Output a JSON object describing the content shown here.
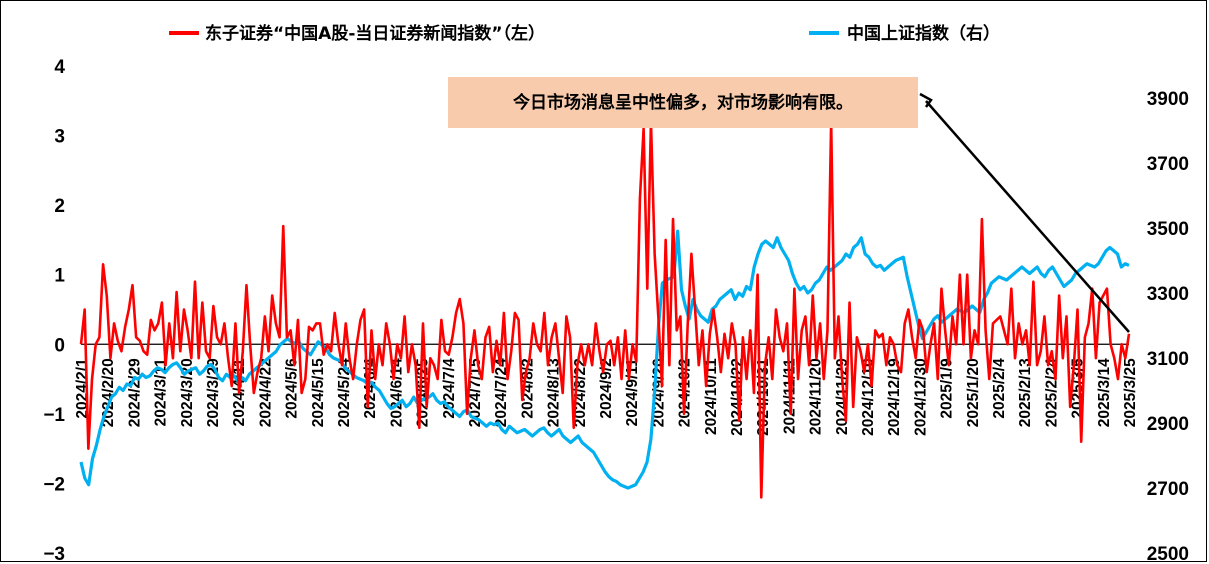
{
  "chart_data": {
    "type": "line",
    "legend": {
      "left_series_label": "东子证券“中国A股-当日证券新闻指数”（左）",
      "right_series_label": "中国上证指数（右）",
      "placement": "top"
    },
    "annotation": "今日市场消息呈中性偏多，对市场影响有限。",
    "colors": {
      "left_series": "#ff0000",
      "right_series": "#00b0f0",
      "annotation_bg": "#f8cbad"
    },
    "y_left": {
      "ylim": [
        -3,
        4
      ],
      "ticks": [
        "4",
        "3",
        "2",
        "1",
        "0",
        "−1",
        "−2",
        "−3"
      ]
    },
    "y_right": {
      "ylim": [
        2500,
        4000
      ],
      "ticks": [
        "3900",
        "3700",
        "3500",
        "3300",
        "3100",
        "2900",
        "2700",
        "2500"
      ]
    },
    "x_tick_labels": [
      "2024/2/1",
      "2024/2/20",
      "2024/2/29",
      "2024/3/11",
      "2024/3/20",
      "2024/3/29",
      "2024/4/11",
      "2024/4/22",
      "2024/5/6",
      "2024/5/15",
      "2024/5/24",
      "2024/6/4",
      "2024/6/14",
      "2024/6/25",
      "2024/7/4",
      "2024/7/15",
      "2024/7/24",
      "2024/8/2",
      "2024/8/13",
      "2024/8/22",
      "2024/9/2",
      "2024/9/11",
      "2024/9/20",
      "2024/10/2",
      "2024/10/11",
      "2024/10/22",
      "2024/10/31",
      "2024/11/11",
      "2024/11/20",
      "2024/11/29",
      "2024/12/10",
      "2024/12/19",
      "2024/12/30",
      "2025/1/9",
      "2025/1/20",
      "2025/2/4",
      "2025/2/13",
      "2025/2/24",
      "2025/3/5",
      "2025/3/14",
      "2025/3/25"
    ],
    "series": [
      {
        "name": "东子证券“中国A股-当日证券新闻指数”（左）",
        "axis": "left",
        "values": [
          0.0,
          0.5,
          -1.5,
          -0.5,
          0.0,
          0.1,
          1.15,
          0.7,
          -0.2,
          0.3,
          0.05,
          -0.1,
          0.25,
          0.5,
          0.85,
          0.1,
          0.05,
          -0.1,
          -0.15,
          0.35,
          0.2,
          0.3,
          0.6,
          -0.3,
          0.3,
          -0.2,
          0.75,
          -0.1,
          0.5,
          0.2,
          -0.2,
          0.9,
          -0.2,
          0.6,
          -0.1,
          -0.2,
          0.55,
          0.1,
          0.0,
          0.3,
          -0.2,
          -0.6,
          0.3,
          -0.7,
          -0.1,
          0.85,
          0.0,
          -0.7,
          -0.4,
          -0.2,
          0.4,
          -0.1,
          0.7,
          0.3,
          0.1,
          1.7,
          0.1,
          0.2,
          -0.3,
          0.35,
          -0.7,
          -0.5,
          0.25,
          0.2,
          0.3,
          0.3,
          -0.15,
          0.0,
          -0.1,
          0.45,
          0.0,
          -0.3,
          0.3,
          -0.2,
          -0.5,
          0.0,
          0.35,
          0.5,
          -0.9,
          0.2,
          -0.5,
          0.0,
          -0.3,
          0.3,
          0.0,
          -0.5,
          0.0,
          -0.2,
          0.4,
          -0.4,
          0.0,
          -0.3,
          -1.2,
          0.3,
          -0.9,
          -0.2,
          -0.3,
          -0.5,
          0.35,
          -0.1,
          -0.15,
          0.1,
          0.45,
          0.65,
          0.3,
          -1.0,
          -0.2,
          0.2,
          -0.3,
          -0.5,
          0.1,
          0.25,
          -0.4,
          0.05,
          -0.3,
          0.45,
          -0.5,
          -0.1,
          0.45,
          0.35,
          -0.8,
          -0.4,
          -0.2,
          0.3,
          0.0,
          -0.1,
          0.45,
          -0.3,
          0.1,
          0.3,
          -0.2,
          -0.7,
          0.4,
          0.1,
          -1.2,
          -0.3,
          0.0,
          -0.3,
          0.0,
          -0.3,
          0.3,
          -0.1,
          -0.4,
          0.0,
          0.05,
          -0.3,
          0.1,
          -0.5,
          0.2,
          -0.5,
          0.0,
          -0.25,
          2.1,
          3.1,
          0.8,
          3.2,
          1.3,
          0.4,
          -0.6,
          1.5,
          -0.3,
          1.8,
          0.2,
          0.4,
          -1.0,
          0.3,
          1.3,
          0.5,
          -0.3,
          0.2,
          -0.6,
          0.15,
          0.5,
          0.1,
          -0.4,
          0.15,
          -0.2,
          0.3,
          0.0,
          -1.1,
          0.1,
          -0.5,
          0.2,
          -0.7,
          1.0,
          -2.2,
          -0.3,
          0.1,
          -0.5,
          0.5,
          0.1,
          -0.1,
          0.3,
          -1.0,
          0.8,
          -0.5,
          0.2,
          0.4,
          -0.3,
          0.7,
          -0.2,
          0.3,
          -0.5,
          0.2,
          3.2,
          -0.2,
          0.4,
          -0.5,
          -1.1,
          0.6,
          -0.9,
          0.1,
          -0.1,
          -0.4,
          0.0,
          -0.6,
          0.2,
          0.1,
          0.15,
          -0.3,
          0.1,
          0.0,
          -0.3,
          -0.4,
          0.3,
          0.5,
          0.1,
          -0.2,
          0.35,
          0.2,
          -0.4,
          0.0,
          0.3,
          -0.5,
          0.8,
          0.2,
          -0.3,
          0.4,
          0.0,
          1.0,
          0.0,
          1.0,
          -0.2,
          0.2,
          0.0,
          1.8,
          0.2,
          -0.5,
          0.3,
          0.35,
          0.4,
          0.2,
          0.0,
          0.8,
          -0.2,
          0.3,
          0.0,
          0.2,
          -0.3,
          0.9,
          -0.3,
          -0.1,
          0.4,
          -0.3,
          -0.1,
          -0.5,
          0.7,
          -0.2,
          0.4,
          -0.9,
          -0.3,
          0.5,
          -1.4,
          0.1,
          0.3,
          0.8,
          -0.2,
          0.6,
          0.7,
          0.8,
          0.0,
          -0.2,
          -0.5,
          0.0,
          -0.2,
          0.15
        ]
      },
      {
        "name": "中国上证指数（右）",
        "axis": "right",
        "values": [
          2780,
          2730,
          2710,
          2790,
          2830,
          2880,
          2920,
          2950,
          2980,
          2990,
          3010,
          3000,
          3020,
          3015,
          3040,
          3035,
          3050,
          3040,
          3045,
          3060,
          3070,
          3065,
          3055,
          3070,
          3080,
          3085,
          3070,
          3050,
          3060,
          3065,
          3070,
          3050,
          3060,
          3075,
          3080,
          3065,
          3040,
          3030,
          3050,
          3040,
          3045,
          3030,
          3040,
          3030,
          3050,
          3060,
          3070,
          3080,
          3090,
          3100,
          3110,
          3120,
          3140,
          3150,
          3160,
          3150,
          3145,
          3150,
          3130,
          3120,
          3110,
          3130,
          3150,
          3140,
          3130,
          3110,
          3100,
          3095,
          3090,
          3070,
          3060,
          3050,
          3040,
          3035,
          3030,
          3020,
          3025,
          3010,
          3000,
          2980,
          2960,
          2945,
          2950,
          2960,
          2970,
          2950,
          2960,
          2980,
          2960,
          2970,
          2975,
          2980,
          2990,
          2970,
          2960,
          2965,
          2950,
          2940,
          2930,
          2920,
          2935,
          2940,
          2920,
          2915,
          2910,
          2900,
          2890,
          2900,
          2895,
          2900,
          2880,
          2870,
          2890,
          2880,
          2870,
          2875,
          2880,
          2870,
          2860,
          2870,
          2880,
          2885,
          2870,
          2860,
          2870,
          2880,
          2860,
          2850,
          2840,
          2850,
          2860,
          2840,
          2830,
          2820,
          2810,
          2790,
          2770,
          2750,
          2735,
          2725,
          2720,
          2710,
          2705,
          2700,
          2705,
          2710,
          2730,
          2750,
          2780,
          2850,
          3000,
          3200,
          3330,
          3340,
          3345,
          3350,
          3490,
          3310,
          3260,
          3220,
          3280,
          3250,
          3230,
          3220,
          3210,
          3250,
          3260,
          3280,
          3290,
          3300,
          3310,
          3280,
          3300,
          3290,
          3320,
          3310,
          3380,
          3420,
          3450,
          3460,
          3450,
          3440,
          3470,
          3440,
          3420,
          3400,
          3360,
          3330,
          3310,
          3320,
          3300,
          3310,
          3330,
          3340,
          3360,
          3380,
          3370,
          3380,
          3390,
          3400,
          3420,
          3410,
          3440,
          3450,
          3470,
          3420,
          3410,
          3390,
          3380,
          3385,
          3370,
          3380,
          3390,
          3400,
          3405,
          3410,
          3350,
          3300,
          3250,
          3200,
          3160,
          3180,
          3200,
          3220,
          3230,
          3210,
          3220,
          3230,
          3240,
          3250,
          3245,
          3240,
          3250,
          3260,
          3250,
          3240,
          3280,
          3300,
          3330,
          3340,
          3350,
          3345,
          3340,
          3350,
          3360,
          3370,
          3380,
          3370,
          3360,
          3370,
          3380,
          3360,
          3350,
          3370,
          3380,
          3360,
          3340,
          3320,
          3330,
          3340,
          3360,
          3370,
          3380,
          3390,
          3385,
          3380,
          3390,
          3410,
          3430,
          3440,
          3430,
          3420,
          3380,
          3390,
          3385
        ]
      }
    ]
  }
}
